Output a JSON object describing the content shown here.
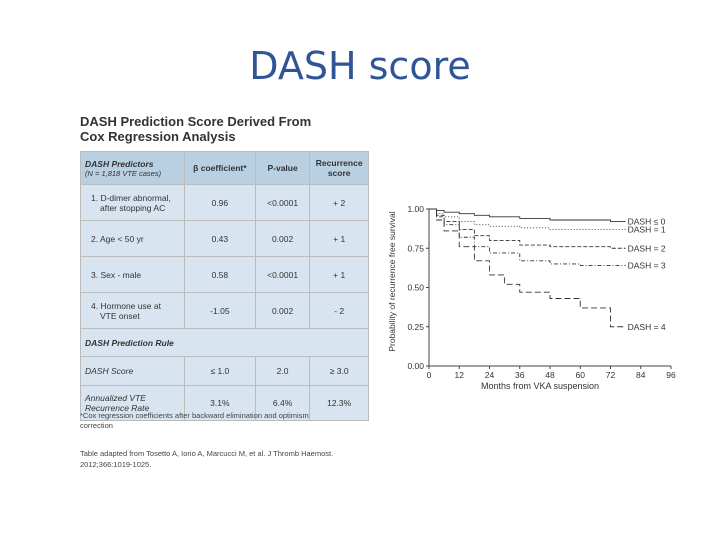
{
  "slide": {
    "title": "DASH score"
  },
  "table": {
    "heading_line1": "DASH Prediction Score Derived From",
    "heading_line2": "Cox Regression Analysis",
    "header": {
      "predictors": "DASH Predictors",
      "cases": "(N = 1,818 VTE cases)",
      "beta": "β coefficient*",
      "pvalue": "P-value",
      "recurrence_line1": "Recurrence",
      "recurrence_line2": "score"
    },
    "rows": [
      {
        "label_line1": "1. D-dimer abnormal,",
        "label_line2": "after stopping AC",
        "beta": "0.96",
        "p": "<0.0001",
        "score": "+ 2"
      },
      {
        "label_line1": "2. Age < 50 yr",
        "label_line2": "",
        "beta": "0.43",
        "p": "0.002",
        "score": "+ 1"
      },
      {
        "label_line1": "3. Sex - male",
        "label_line2": "",
        "beta": "0.58",
        "p": "<0.0001",
        "score": "+ 1"
      },
      {
        "label_line1": "4. Hormone use at",
        "label_line2": "VTE onset",
        "beta": "-1.05",
        "p": "0.002",
        "score": "- 2"
      }
    ],
    "rule_heading": "DASH Prediction Rule",
    "score_row": {
      "label": "DASH Score",
      "c1": "≤ 1.0",
      "c2": "2.0",
      "c3": "≥ 3.0"
    },
    "rate_row": {
      "label_line1": "Annualized VTE",
      "label_line2": "Recurrence Rate",
      "c1": "3.1%",
      "c2": "6.4%",
      "c3": "12.3%"
    },
    "footnote_line1": "*Cox regression coefficients after backward elimination and optimism",
    "footnote_line2": "correction",
    "source_line1": "Table adapted from Tosetto A, Iorio A, Marcucci M, et al. J Thromb Haemost.",
    "source_line2": "2012;366:1019-1025."
  },
  "chart_data": {
    "type": "line",
    "xlabel": "Months from VKA suspension",
    "ylabel": "Probability of recurrence free survival",
    "xlim": [
      0,
      96
    ],
    "ylim": [
      0,
      1
    ],
    "x_ticks": [
      "0",
      "12",
      "24",
      "36",
      "48",
      "60",
      "72",
      "84",
      "96"
    ],
    "y_ticks": [
      "0.00",
      "0.25",
      "0.50",
      "0.75",
      "1.00"
    ],
    "series": [
      {
        "name": "DASH ≤ 0",
        "dash": "solid",
        "x": [
          0,
          3,
          6,
          12,
          18,
          24,
          36,
          48,
          60,
          72,
          78
        ],
        "y": [
          1.0,
          0.99,
          0.98,
          0.97,
          0.96,
          0.95,
          0.94,
          0.93,
          0.93,
          0.92,
          0.92
        ]
      },
      {
        "name": "DASH = 1",
        "dash": "dotted",
        "x": [
          0,
          3,
          6,
          12,
          18,
          24,
          36,
          48,
          60,
          72,
          78
        ],
        "y": [
          1.0,
          0.97,
          0.95,
          0.92,
          0.9,
          0.89,
          0.88,
          0.87,
          0.87,
          0.87,
          0.87
        ]
      },
      {
        "name": "DASH = 2",
        "dash": "dashed",
        "x": [
          0,
          3,
          6,
          12,
          18,
          24,
          36,
          48,
          60,
          72,
          78
        ],
        "y": [
          1.0,
          0.96,
          0.92,
          0.87,
          0.83,
          0.8,
          0.77,
          0.76,
          0.76,
          0.75,
          0.75
        ]
      },
      {
        "name": "DASH = 3",
        "dash": "dashdot",
        "x": [
          0,
          3,
          6,
          12,
          18,
          24,
          36,
          48,
          60,
          72,
          78
        ],
        "y": [
          1.0,
          0.95,
          0.9,
          0.82,
          0.76,
          0.72,
          0.67,
          0.65,
          0.64,
          0.64,
          0.64
        ]
      },
      {
        "name": "DASH = 4",
        "dash": "longdash",
        "x": [
          0,
          3,
          6,
          12,
          18,
          24,
          30,
          36,
          48,
          60,
          72,
          78
        ],
        "y": [
          1.0,
          0.93,
          0.86,
          0.76,
          0.67,
          0.58,
          0.52,
          0.47,
          0.43,
          0.37,
          0.25,
          0.25
        ]
      }
    ]
  }
}
